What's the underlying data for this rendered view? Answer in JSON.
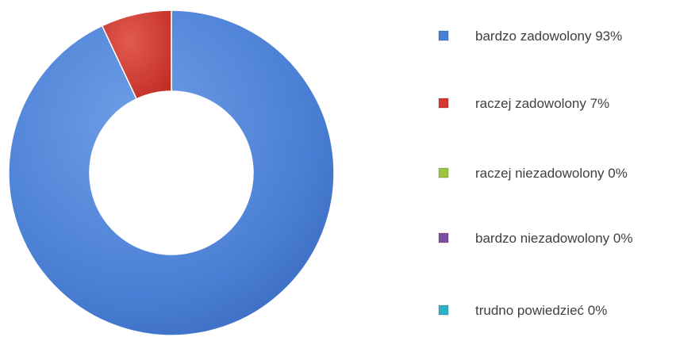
{
  "chart_data": {
    "type": "pie",
    "subtype": "doughnut",
    "title": "",
    "categories": [
      "bardzo zadowolony",
      "raczej zadowolony",
      "raczej niezadowolony",
      "bardzo niezadowolony",
      "trudno powiedzieć"
    ],
    "values": [
      93,
      7,
      0,
      0,
      0
    ],
    "unit": "%",
    "legend_labels": [
      "bardzo zadowolony 93%",
      "raczej zadowolony 7%",
      "raczej niezadowolony 0%",
      "bardzo niezadowolony 0%",
      "trudno powiedzieć 0%"
    ],
    "colors": [
      "#4a7fd4",
      "#d33a32",
      "#9bc43e",
      "#7d4fa4",
      "#2fb0c8"
    ],
    "legend_position": "right",
    "grid": false
  }
}
